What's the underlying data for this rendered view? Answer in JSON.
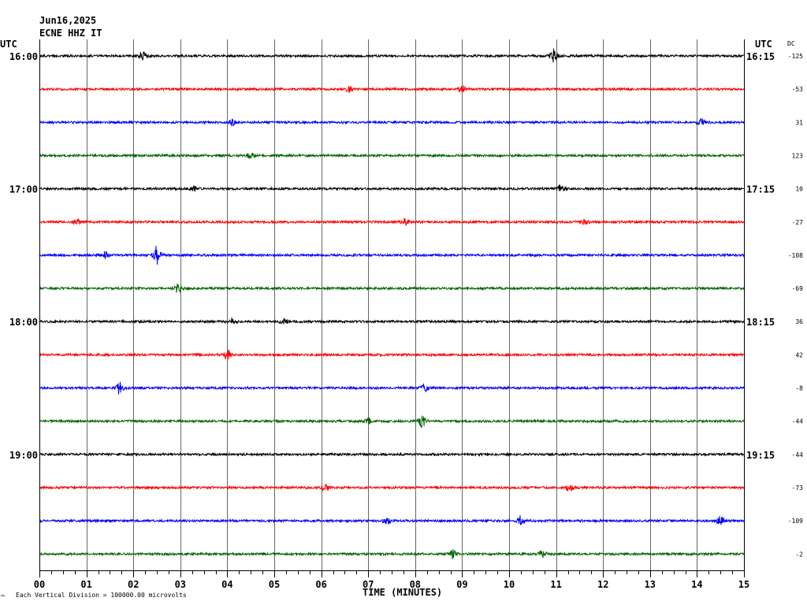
{
  "header": {
    "date": "Jun16,2025",
    "station": "ECNE HHZ IT",
    "utc_left": "UTC",
    "utc_right": "UTC",
    "dc_label": "DC"
  },
  "footer": {
    "logo_mark": "™",
    "scale_note": "Each Vertical Division = 100000.00 microvolts",
    "xlabel": "TIME (MINUTES)"
  },
  "colors": {
    "trace_cycle": [
      "#000000",
      "#ff0000",
      "#0000ff",
      "#006400"
    ],
    "grid": "#666666",
    "frame": "#000000"
  },
  "chart_data": {
    "type": "line",
    "title": "",
    "xlabel": "TIME (MINUTES)",
    "ylabel": "",
    "xlim": [
      0,
      15
    ],
    "x_ticks": [
      "00",
      "01",
      "02",
      "03",
      "04",
      "05",
      "06",
      "07",
      "08",
      "09",
      "10",
      "11",
      "12",
      "13",
      "14",
      "15"
    ],
    "grid": true,
    "minutes_per_trace": 15,
    "left_time_labels": [
      {
        "row": 0,
        "text": "16:00"
      },
      {
        "row": 4,
        "text": "17:00"
      },
      {
        "row": 8,
        "text": "18:00"
      },
      {
        "row": 12,
        "text": "19:00"
      }
    ],
    "right_time_labels": [
      {
        "row": 0,
        "text": "16:15"
      },
      {
        "row": 4,
        "text": "17:15"
      },
      {
        "row": 8,
        "text": "18:15"
      },
      {
        "row": 12,
        "text": "19:15"
      }
    ],
    "dc_offsets": [
      "-125",
      "-53",
      "31",
      "123",
      "10",
      "-27",
      "-108",
      "-69",
      "36",
      "42",
      "-8",
      "-44",
      "-44",
      "-73",
      "-109",
      "-2"
    ],
    "events": [
      {
        "row": 0,
        "minute": 2.2,
        "amp": 5
      },
      {
        "row": 0,
        "minute": 10.95,
        "amp": 8
      },
      {
        "row": 1,
        "minute": 6.6,
        "amp": 4
      },
      {
        "row": 1,
        "minute": 9.0,
        "amp": 4
      },
      {
        "row": 2,
        "minute": 4.1,
        "amp": 4
      },
      {
        "row": 2,
        "minute": 14.1,
        "amp": 4
      },
      {
        "row": 3,
        "minute": 4.5,
        "amp": 4
      },
      {
        "row": 4,
        "minute": 11.1,
        "amp": 5
      },
      {
        "row": 4,
        "minute": 3.3,
        "amp": 3
      },
      {
        "row": 5,
        "minute": 0.8,
        "amp": 4
      },
      {
        "row": 5,
        "minute": 7.8,
        "amp": 4
      },
      {
        "row": 5,
        "minute": 11.6,
        "amp": 4
      },
      {
        "row": 6,
        "minute": 2.5,
        "amp": 11
      },
      {
        "row": 6,
        "minute": 1.4,
        "amp": 4
      },
      {
        "row": 7,
        "minute": 2.95,
        "amp": 5
      },
      {
        "row": 8,
        "minute": 4.1,
        "amp": 4
      },
      {
        "row": 8,
        "minute": 5.2,
        "amp": 4
      },
      {
        "row": 9,
        "minute": 4.0,
        "amp": 6
      },
      {
        "row": 10,
        "minute": 1.7,
        "amp": 7
      },
      {
        "row": 10,
        "minute": 8.2,
        "amp": 5
      },
      {
        "row": 11,
        "minute": 8.15,
        "amp": 8
      },
      {
        "row": 11,
        "minute": 7.0,
        "amp": 4
      },
      {
        "row": 13,
        "minute": 6.1,
        "amp": 4
      },
      {
        "row": 13,
        "minute": 11.3,
        "amp": 4
      },
      {
        "row": 14,
        "minute": 10.25,
        "amp": 7
      },
      {
        "row": 14,
        "minute": 7.4,
        "amp": 4
      },
      {
        "row": 14,
        "minute": 14.5,
        "amp": 5
      },
      {
        "row": 15,
        "minute": 8.8,
        "amp": 6
      },
      {
        "row": 15,
        "minute": 10.7,
        "amp": 4
      }
    ]
  }
}
